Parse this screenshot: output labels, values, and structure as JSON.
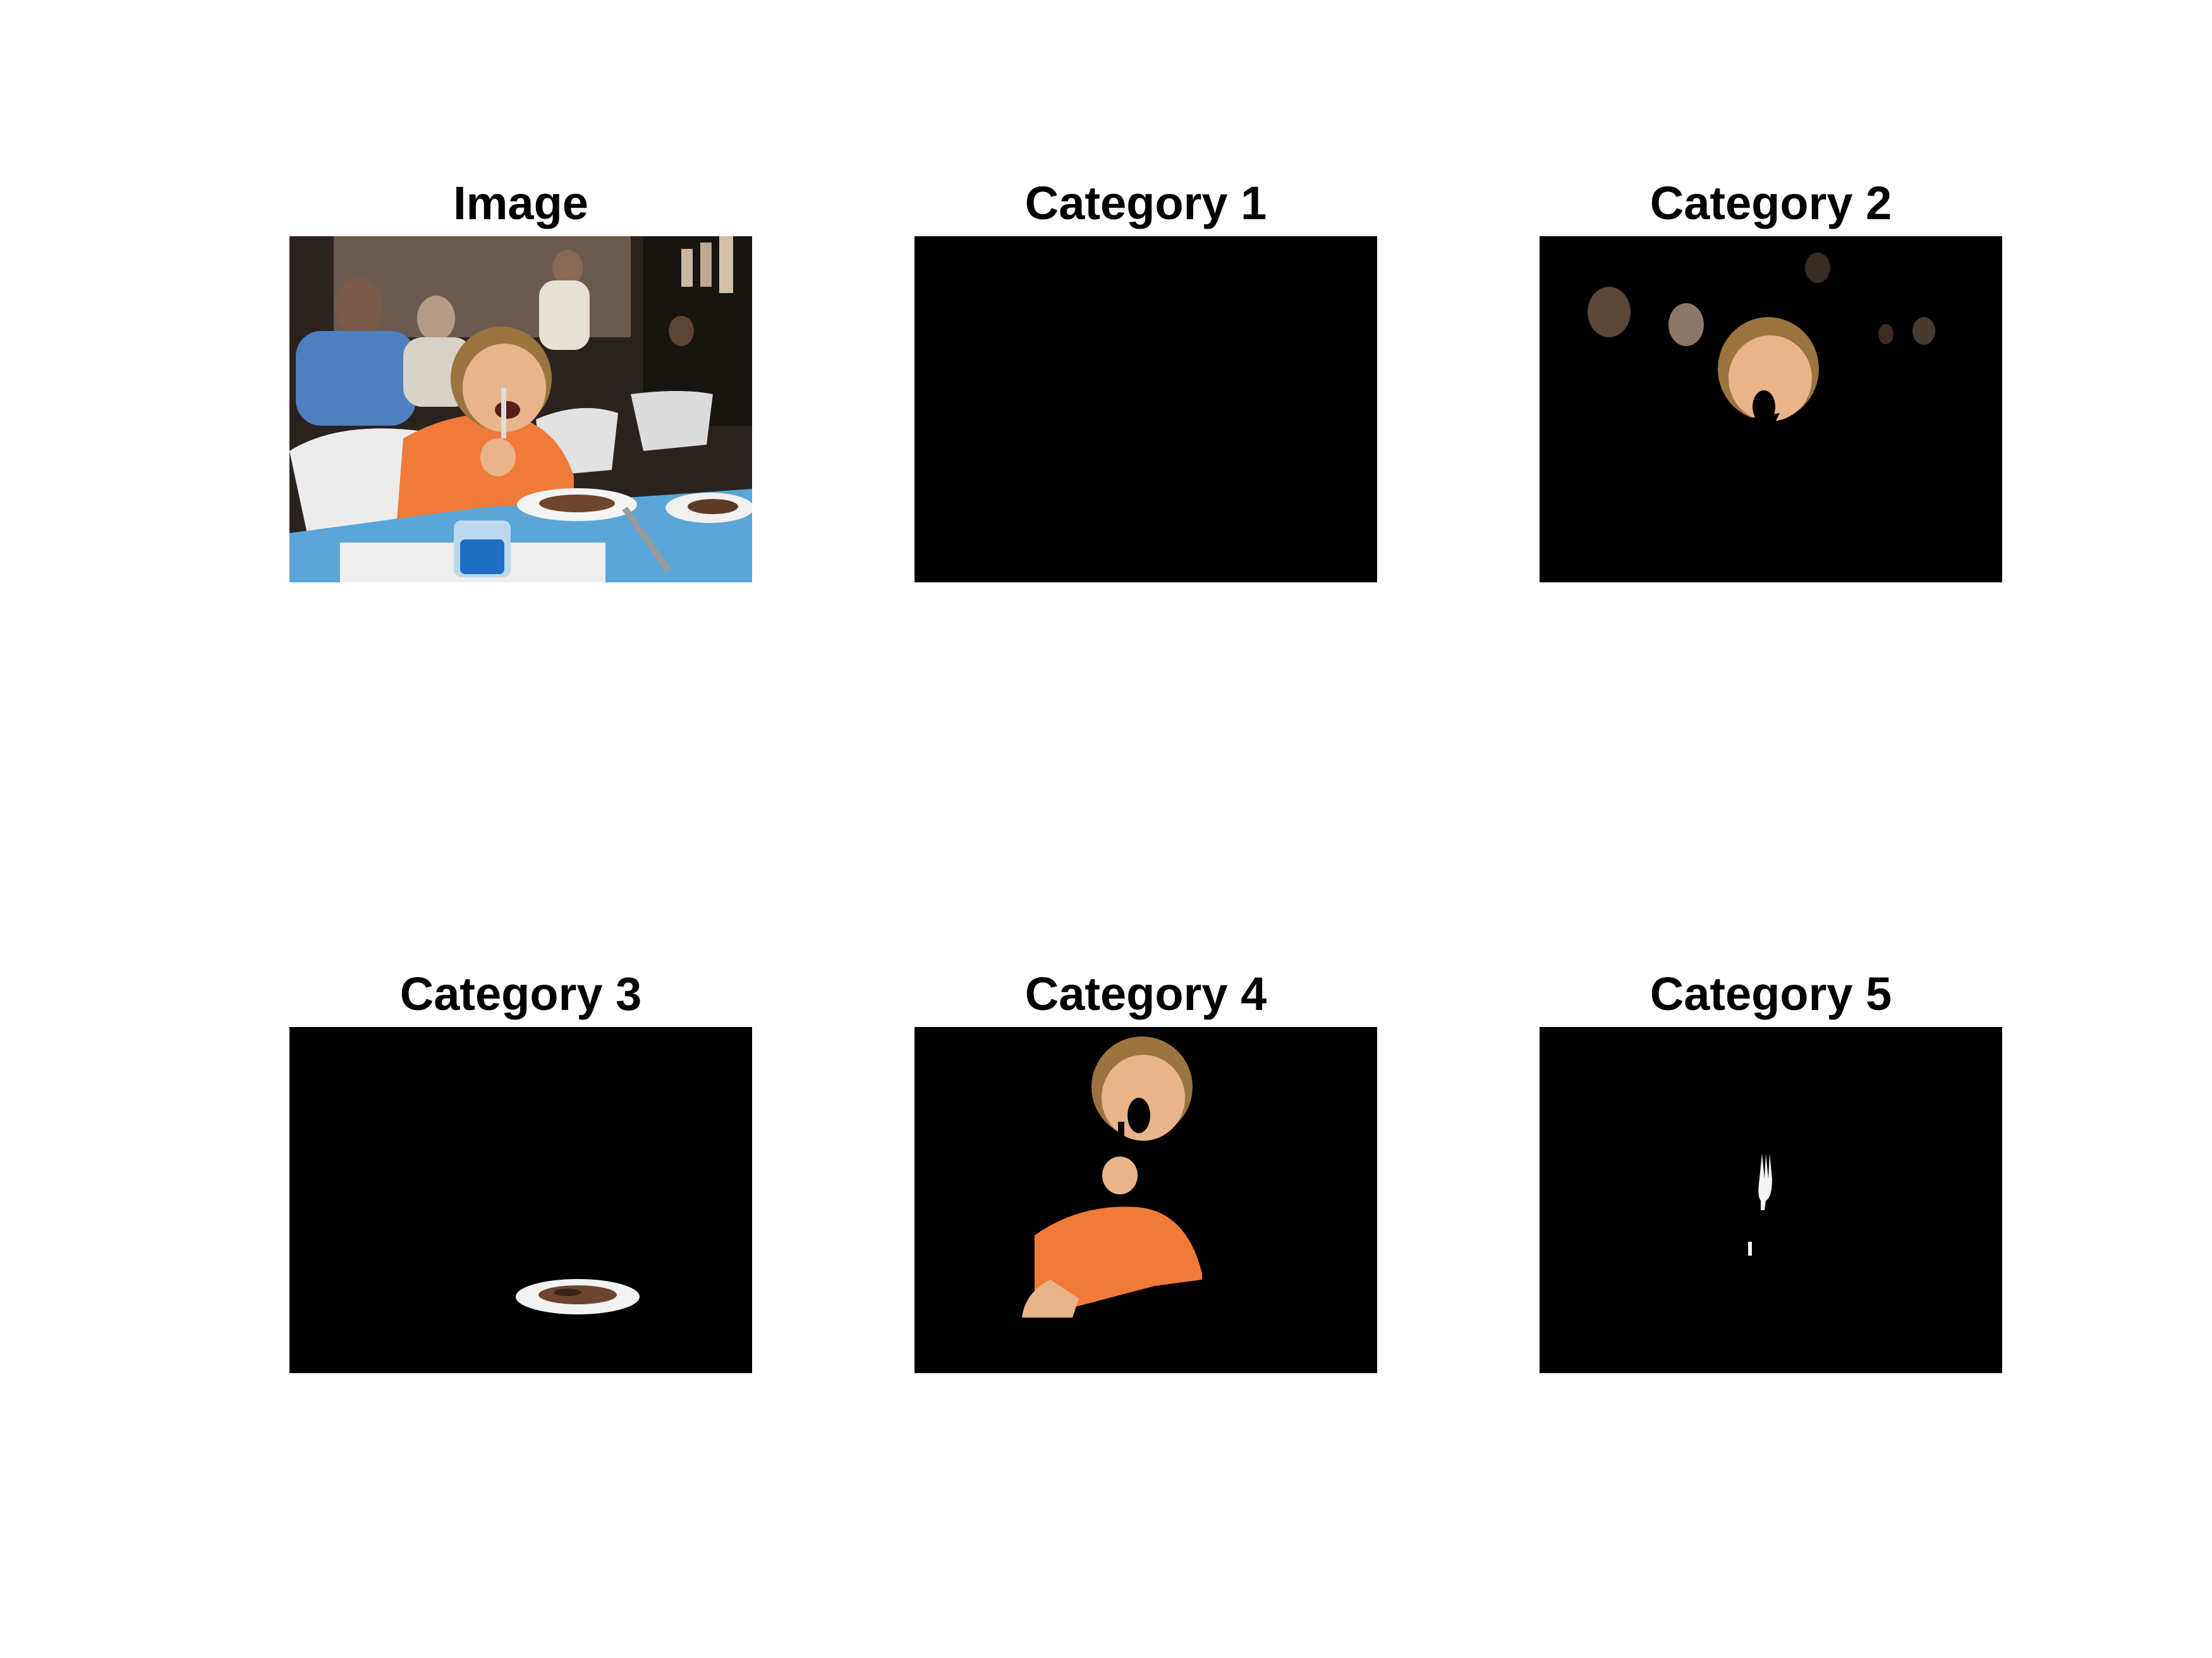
{
  "panels": [
    {
      "title": "Image",
      "content": "original-photo"
    },
    {
      "title": "Category 1",
      "content": "empty-mask"
    },
    {
      "title": "Category 2",
      "content": "heads-mask"
    },
    {
      "title": "Category 3",
      "content": "plate-mask"
    },
    {
      "title": "Category 4",
      "content": "child-mask"
    },
    {
      "title": "Category 5",
      "content": "fork-mask"
    }
  ],
  "colors": {
    "background": "#000000",
    "tablecloth": "#5aa6d8",
    "shirt": "#f07a3a",
    "skin": "#e9b48a",
    "hair": "#9b7440"
  }
}
